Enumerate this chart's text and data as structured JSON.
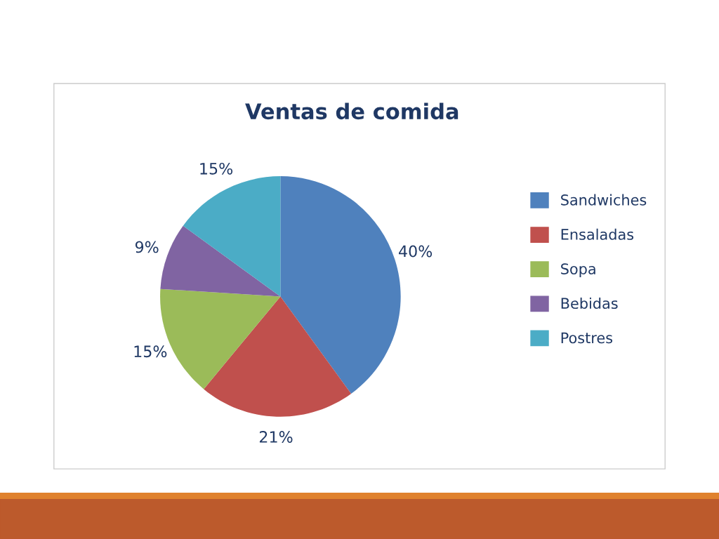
{
  "chart_data": {
    "type": "pie",
    "title": "Ventas de comida",
    "categories": [
      "Sandwiches",
      "Ensaladas",
      "Sopa",
      "Bebidas",
      "Postres"
    ],
    "values": [
      40,
      21,
      15,
      9,
      15
    ],
    "colors": [
      "#4f81bd",
      "#c0504d",
      "#9bbb59",
      "#8064a2",
      "#4bacc6"
    ],
    "value_labels": [
      "40%",
      "21%",
      "15%",
      "9%",
      "15%"
    ],
    "legend": "right"
  }
}
